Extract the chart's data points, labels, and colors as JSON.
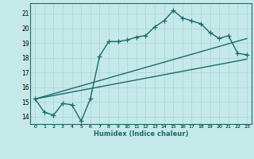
{
  "xlabel": "Humidex (Indice chaleur)",
  "xlim": [
    -0.5,
    23.5
  ],
  "ylim": [
    13.5,
    21.7
  ],
  "yticks": [
    14,
    15,
    16,
    17,
    18,
    19,
    20,
    21
  ],
  "xticks": [
    0,
    1,
    2,
    3,
    4,
    5,
    6,
    7,
    8,
    9,
    10,
    11,
    12,
    13,
    14,
    15,
    16,
    17,
    18,
    19,
    20,
    21,
    22,
    23
  ],
  "background_color": "#c5e8e8",
  "grid_color": "#aad4d4",
  "line_color": "#1a6b6b",
  "line_width": 1.0,
  "marker": "+",
  "marker_size": 4,
  "series1": [
    [
      0,
      15.2
    ],
    [
      1,
      14.3
    ],
    [
      2,
      14.1
    ],
    [
      3,
      14.9
    ],
    [
      4,
      14.8
    ],
    [
      5,
      13.7
    ],
    [
      6,
      15.2
    ],
    [
      7,
      18.1
    ],
    [
      8,
      19.1
    ],
    [
      9,
      19.1
    ],
    [
      10,
      19.2
    ],
    [
      11,
      19.4
    ],
    [
      12,
      19.5
    ],
    [
      13,
      20.1
    ],
    [
      14,
      20.5
    ],
    [
      15,
      21.2
    ],
    [
      16,
      20.7
    ],
    [
      17,
      20.5
    ],
    [
      18,
      20.3
    ],
    [
      19,
      19.7
    ],
    [
      20,
      19.3
    ],
    [
      21,
      19.5
    ],
    [
      22,
      18.3
    ],
    [
      23,
      18.2
    ]
  ],
  "series2": [
    [
      0,
      15.2
    ],
    [
      23,
      19.3
    ]
  ],
  "series3": [
    [
      0,
      15.2
    ],
    [
      23,
      17.9
    ]
  ]
}
